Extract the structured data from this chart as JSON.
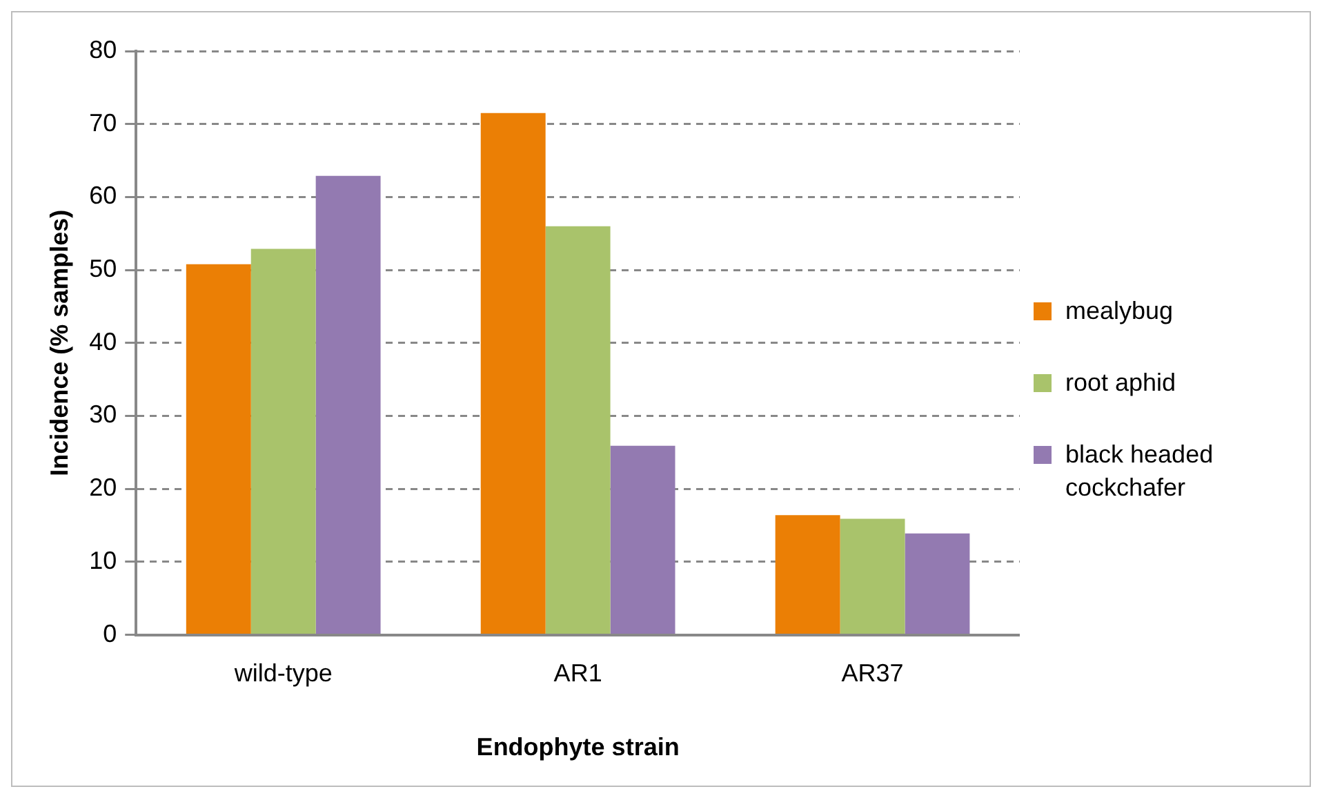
{
  "chart_data": {
    "type": "bar",
    "xlabel": "Endophyte strain",
    "ylabel": "Incidence (% samples)",
    "categories": [
      "wild-type",
      "AR1",
      "AR37"
    ],
    "series": [
      {
        "name": "mealybug",
        "color": "#eb7f05",
        "values": [
          50.8,
          71.5,
          16.4
        ]
      },
      {
        "name": "root aphid",
        "color": "#a9c36b",
        "values": [
          52.9,
          56,
          15.9
        ]
      },
      {
        "name": "black headed cockchafer",
        "color": "#937ab1",
        "values": [
          62.9,
          25.9,
          13.9
        ]
      }
    ],
    "ylim": [
      0,
      80
    ],
    "yticks": [
      0,
      10,
      20,
      30,
      40,
      50,
      60,
      70,
      80
    ],
    "grid": "y",
    "legend": "right"
  }
}
